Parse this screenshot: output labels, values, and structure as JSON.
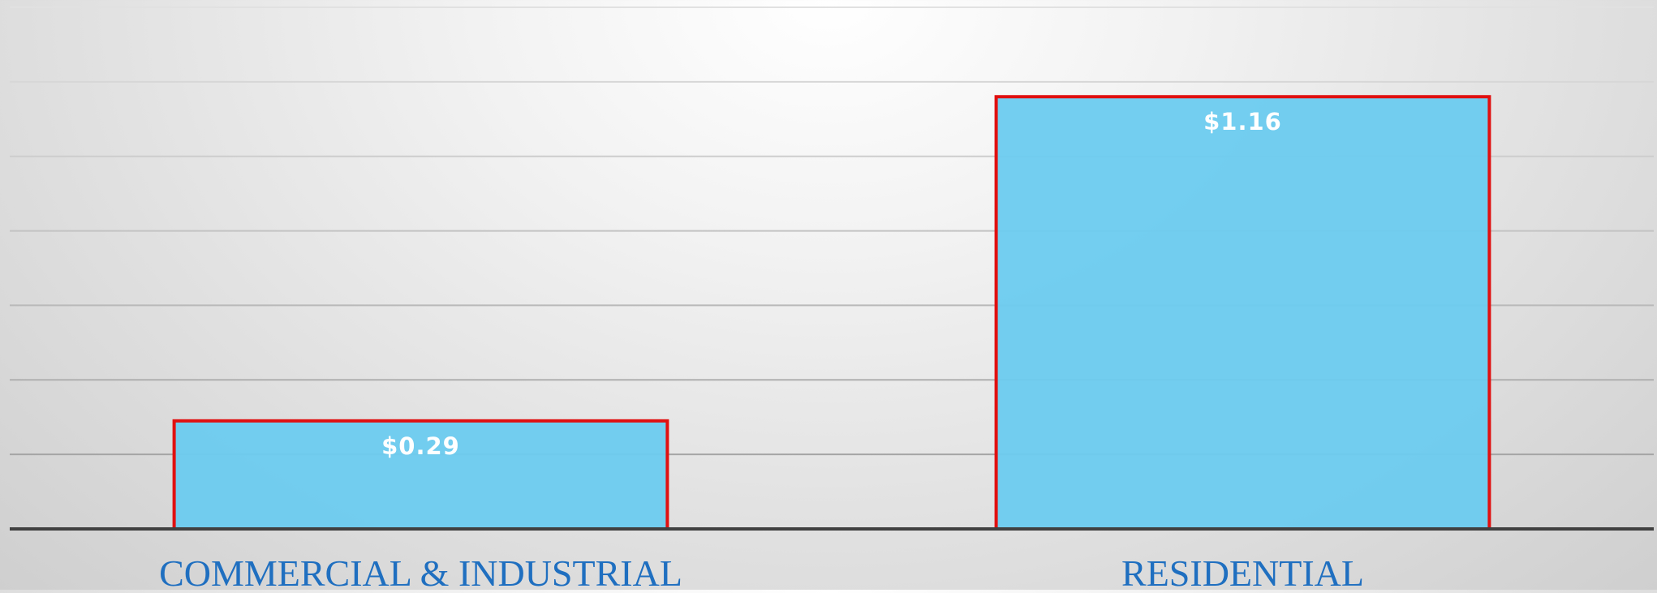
{
  "chart_data": {
    "type": "bar",
    "categories": [
      "COMMERCIAL & INDUSTRIAL",
      "RESIDENTIAL"
    ],
    "values": [
      0.29,
      1.16
    ],
    "value_labels": [
      "$0.29",
      "$1.16"
    ],
    "title": "",
    "xlabel": "",
    "ylabel": "",
    "ylim": [
      0,
      1.4
    ],
    "grid": true,
    "gridlines_count": 7,
    "legend": "none",
    "colors": {
      "bar_fill": "#6ccbef",
      "bar_border": "#e01010",
      "value_label": "#ffffff",
      "category_label": "#1f6fc0",
      "axis": "#404040",
      "grid": "#a8a8a8"
    }
  }
}
